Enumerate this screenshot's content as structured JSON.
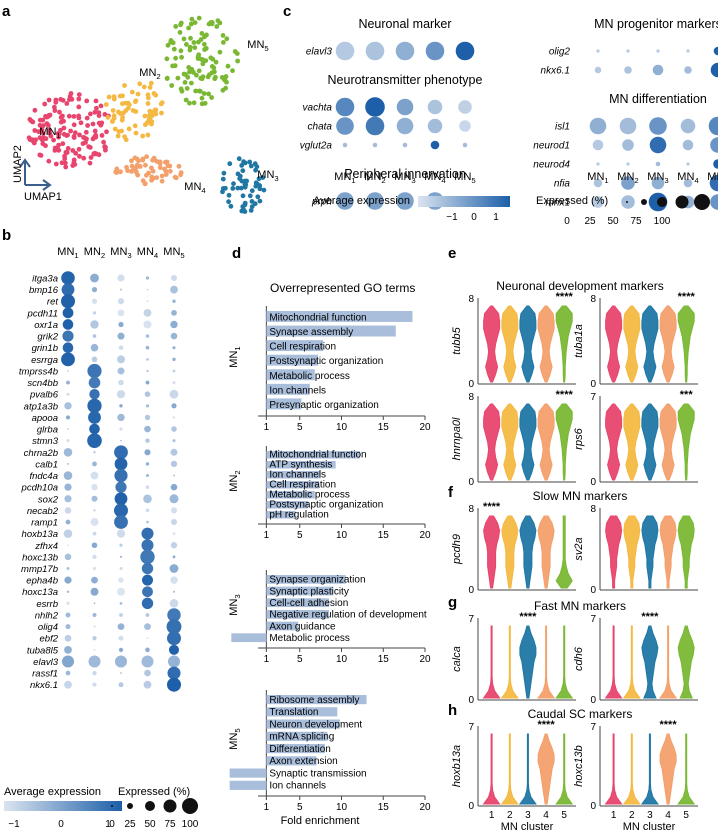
{
  "panel_labels": {
    "a": "a",
    "b": "b",
    "c": "c",
    "d": "d",
    "e": "e",
    "f": "f",
    "g": "g",
    "h": "h"
  },
  "colors": {
    "MN1": "#e8456e",
    "MN2": "#f4b942",
    "MN3": "#1f77a4",
    "MN4": "#f3a06b",
    "MN5": "#7ab834",
    "dot_high": "#1d5fa8",
    "dot_low": "#dbe4f0",
    "bar": "#a9bedb"
  },
  "panel_a": {
    "cluster_labels": [
      {
        "main": "MN",
        "sub": "5"
      },
      {
        "main": "MN",
        "sub": "2"
      },
      {
        "main": "MN",
        "sub": "1"
      },
      {
        "main": "MN",
        "sub": "4"
      },
      {
        "main": "MN",
        "sub": "3"
      }
    ],
    "xaxis": "UMAP1",
    "yaxis": "UMAP2"
  },
  "panel_b": {
    "columns": [
      {
        "main": "MN",
        "sub": "1"
      },
      {
        "main": "MN",
        "sub": "2"
      },
      {
        "main": "MN",
        "sub": "3"
      },
      {
        "main": "MN",
        "sub": "4"
      },
      {
        "main": "MN",
        "sub": "5"
      }
    ],
    "genes": [
      "itga3a",
      "bmp16",
      "ret",
      "pcdh11",
      "oxr1a",
      "grik2",
      "grin1b",
      "esrrga",
      "tmprss4b",
      "scn4bb",
      "pvalb6",
      "atp1a3b",
      "apooa",
      "glrba",
      "stmn3",
      "chrna2b",
      "calb1",
      "fndc4a",
      "pcdh10a",
      "sox2",
      "necab2",
      "ramp1",
      "hoxb13a",
      "zfhx4",
      "hoxc13b",
      "mmp17b",
      "epha4b",
      "hoxc13a",
      "esrrb",
      "nhlh2",
      "olig4",
      "ebf2",
      "tuba8l5",
      "elavl3",
      "rassf1",
      "nkx6.1"
    ],
    "avg_label": "Average  expression",
    "avg_ticks": [
      "−1",
      "0",
      "1"
    ],
    "exp_label": "Expressed (%)",
    "exp_ticks": [
      "0",
      "25",
      "50",
      "75",
      "100"
    ]
  },
  "panel_c": {
    "groups": [
      {
        "title": "Neuronal marker",
        "genes": [
          {
            "name": "elavl3",
            "vals": [
              0.2,
              0.25,
              0.4,
              0.6,
              1.0
            ],
            "pct": [
              80,
              80,
              80,
              80,
              80
            ]
          }
        ]
      },
      {
        "title": "Neurotransmitter phenotype",
        "genes": [
          {
            "name": "vachta",
            "vals": [
              0.7,
              1.0,
              0.5,
              0.25,
              0.15
            ],
            "pct": [
              80,
              85,
              70,
              60,
              55
            ]
          },
          {
            "name": "chata",
            "vals": [
              0.6,
              0.8,
              0.4,
              0.3,
              0.1
            ],
            "pct": [
              75,
              80,
              70,
              60,
              45
            ]
          },
          {
            "name": "vglut2a",
            "vals": [
              0.3,
              0.3,
              0.3,
              1.0,
              0.3
            ],
            "pct": [
              10,
              10,
              10,
              30,
              10
            ]
          }
        ]
      },
      {
        "title": "Peripheral innervation",
        "genes": [
          {
            "name": "prph",
            "vals": [
              0.5,
              0.5,
              0.5,
              0.5,
              0.1
            ],
            "pct": [
              75,
              75,
              75,
              75,
              0
            ]
          }
        ]
      }
    ],
    "groups_right": [
      {
        "title": "MN progenitor markers",
        "genes": [
          {
            "name": "olig2",
            "vals": [
              0.2,
              0.2,
              0.2,
              0.2,
              1.0
            ],
            "pct": [
              3,
              3,
              3,
              3,
              30
            ]
          },
          {
            "name": "nkx6.1",
            "vals": [
              0.2,
              0.25,
              0.4,
              0.3,
              1.0
            ],
            "pct": [
              20,
              25,
              40,
              25,
              60
            ]
          }
        ]
      },
      {
        "title": "MN differentiation",
        "genes": [
          {
            "name": "isl1",
            "vals": [
              0.4,
              0.3,
              0.6,
              0.3,
              0.7
            ],
            "pct": [
              70,
              70,
              75,
              60,
              80
            ]
          },
          {
            "name": "neurod1",
            "vals": [
              0.2,
              0.3,
              0.9,
              0.3,
              0.6
            ],
            "pct": [
              40,
              45,
              70,
              40,
              65
            ]
          },
          {
            "name": "neurod4",
            "vals": [
              0.2,
              0.2,
              0.3,
              0.2,
              1.0
            ],
            "pct": [
              3,
              3,
              10,
              3,
              35
            ]
          },
          {
            "name": "nfia",
            "vals": [
              0.25,
              0.5,
              0.4,
              0.3,
              0.9
            ],
            "pct": [
              30,
              55,
              50,
              30,
              70
            ]
          },
          {
            "name": "mnx1",
            "vals": [
              0.2,
              0.3,
              1.0,
              0.4,
              0.6
            ],
            "pct": [
              45,
              55,
              80,
              50,
              65
            ]
          }
        ]
      }
    ],
    "columns": [
      {
        "main": "MN",
        "sub": "1"
      },
      {
        "main": "MN",
        "sub": "2"
      },
      {
        "main": "MN",
        "sub": "3"
      },
      {
        "main": "MN",
        "sub": "4"
      },
      {
        "main": "MN",
        "sub": "5"
      }
    ],
    "avg_label": "Average expression",
    "avg_ticks": [
      "−1",
      "0",
      "1"
    ],
    "exp_label": "Expressed (%)",
    "exp_ticks": [
      "0",
      "25",
      "50",
      "75",
      "100"
    ]
  },
  "panel_d": {
    "title": "Overrepresented GO terms",
    "xlabel": "Fold enrichment",
    "ticks": [
      "1",
      "5",
      "10",
      "15",
      "20"
    ],
    "groups": [
      {
        "label_main": "MN",
        "label_sub": "1",
        "terms": [
          [
            "Mitochondrial function",
            18.5
          ],
          [
            "Synapse assembly",
            16.5
          ],
          [
            "Cell respiration",
            7.8
          ],
          [
            "Postsynaptic organization",
            7.2
          ],
          [
            "Metabolic process",
            6.8
          ],
          [
            "Ion channels",
            6.2
          ],
          [
            "Presynaptic organization",
            5.2
          ]
        ]
      },
      {
        "label_main": "MN",
        "label_sub": "2",
        "terms": [
          [
            "Mitochondrial function",
            12.2
          ],
          [
            "ATP synthesis",
            9.3
          ],
          [
            "Ion channels",
            7.5
          ],
          [
            "Cell respiration",
            7.3
          ],
          [
            "Metabolic process",
            6.8
          ],
          [
            "Postsynaptic organization",
            6.0
          ],
          [
            "pH regulation",
            4.5
          ]
        ]
      },
      {
        "label_main": "MN",
        "label_sub": "3",
        "terms": [
          [
            "Synapse organization",
            10.5
          ],
          [
            "Synaptic plasticity",
            9.0
          ],
          [
            "Cell-cell adhesion",
            8.5
          ],
          [
            "Negative regulation of development",
            8.5
          ],
          [
            "Axon guidance",
            4.8
          ],
          [
            "Metabolic process",
            -0.8
          ]
        ]
      },
      {
        "label_main": "MN",
        "label_sub": "5",
        "terms": [
          [
            "Ribosome assembly",
            13.0
          ],
          [
            "Translation",
            9.5
          ],
          [
            "Neuron development",
            9.8
          ],
          [
            "mRNA splicing",
            8.3
          ],
          [
            "Differentiation",
            8.0
          ],
          [
            "Axon extension",
            7.0
          ],
          [
            "Synaptic transmission",
            -1.5
          ],
          [
            "Ion channels",
            -1.0
          ]
        ]
      }
    ]
  },
  "panel_e": {
    "title": "Neuronal development markers",
    "plots": [
      {
        "gene": "tubb5",
        "ymax": "8",
        "sig": "****"
      },
      {
        "gene": "tuba1a",
        "ymax": "8",
        "sig": "****"
      },
      {
        "gene": "hnrnpa0l",
        "ymax": "8",
        "sig": "****"
      },
      {
        "gene": "rps6",
        "ymax": "7",
        "sig": "***"
      }
    ]
  },
  "panel_f": {
    "title": "Slow MN markers",
    "plots": [
      {
        "gene": "pcdh9",
        "ymax": "8",
        "sig": "****"
      },
      {
        "gene": "sv2a",
        "ymax": "8",
        "sig": ""
      }
    ]
  },
  "panel_g": {
    "title": "Fast MN markers",
    "plots": [
      {
        "gene": "calca",
        "ymax": "7",
        "sig": "****"
      },
      {
        "gene": "cdh6",
        "ymax": "7",
        "sig": "****"
      }
    ]
  },
  "panel_h": {
    "title": "Caudal SC markers",
    "plots": [
      {
        "gene": "hoxb13a",
        "ymax": "7",
        "sig": "****"
      },
      {
        "gene": "hoxc13b",
        "ymax": "7",
        "sig": "****"
      }
    ],
    "xlabel": "MN cluster",
    "xticks": [
      "1",
      "2",
      "3",
      "4",
      "5"
    ]
  },
  "y_zero": "0"
}
